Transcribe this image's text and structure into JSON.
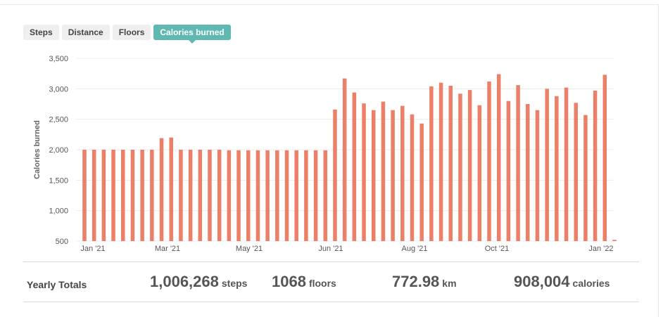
{
  "tabs": [
    {
      "label": "Steps",
      "active": false
    },
    {
      "label": "Distance",
      "active": false
    },
    {
      "label": "Floors",
      "active": false
    },
    {
      "label": "Calories burned",
      "active": true
    }
  ],
  "chart_data": {
    "type": "bar",
    "ylabel": "Calories burned",
    "xlabel": "",
    "ylim": [
      500,
      3500
    ],
    "yticks": [
      500,
      1000,
      1500,
      2000,
      2500,
      3000,
      3500
    ],
    "ytick_labels": [
      "500",
      "1,000",
      "1,500",
      "2,000",
      "2,500",
      "3,000",
      "3,500"
    ],
    "xtick_labels": [
      "Jan '21",
      "Mar '21",
      "May '21",
      "Jun '21",
      "Aug '21",
      "Oct '21",
      "Jan '22"
    ],
    "grid": true,
    "bar_color": "#ec7f67",
    "series": [
      {
        "values": [
          2000,
          2000,
          2000,
          2000,
          2000,
          2000,
          2000,
          2000,
          2190,
          2200,
          2000,
          2000,
          2000,
          2000,
          2000,
          1990,
          1990,
          1990,
          1990,
          1990,
          1990,
          1990,
          1990,
          1990,
          1990,
          1990,
          2660,
          3170,
          2940,
          2760,
          2650,
          2790,
          2650,
          2720,
          2580,
          2430,
          3040,
          3100,
          3050,
          2920,
          2980,
          2730,
          3120,
          3240,
          2800,
          3060,
          2750,
          2650,
          3000,
          2880,
          3020,
          2770,
          2570,
          2970,
          3230,
          520
        ]
      }
    ]
  },
  "totals": {
    "label": "Yearly Totals",
    "steps_value": "1,006,268",
    "steps_unit": "steps",
    "floors_value": "1068",
    "floors_unit": "floors",
    "distance_value": "772.98",
    "distance_unit": "km",
    "calories_value": "908,004",
    "calories_unit": "calories"
  }
}
